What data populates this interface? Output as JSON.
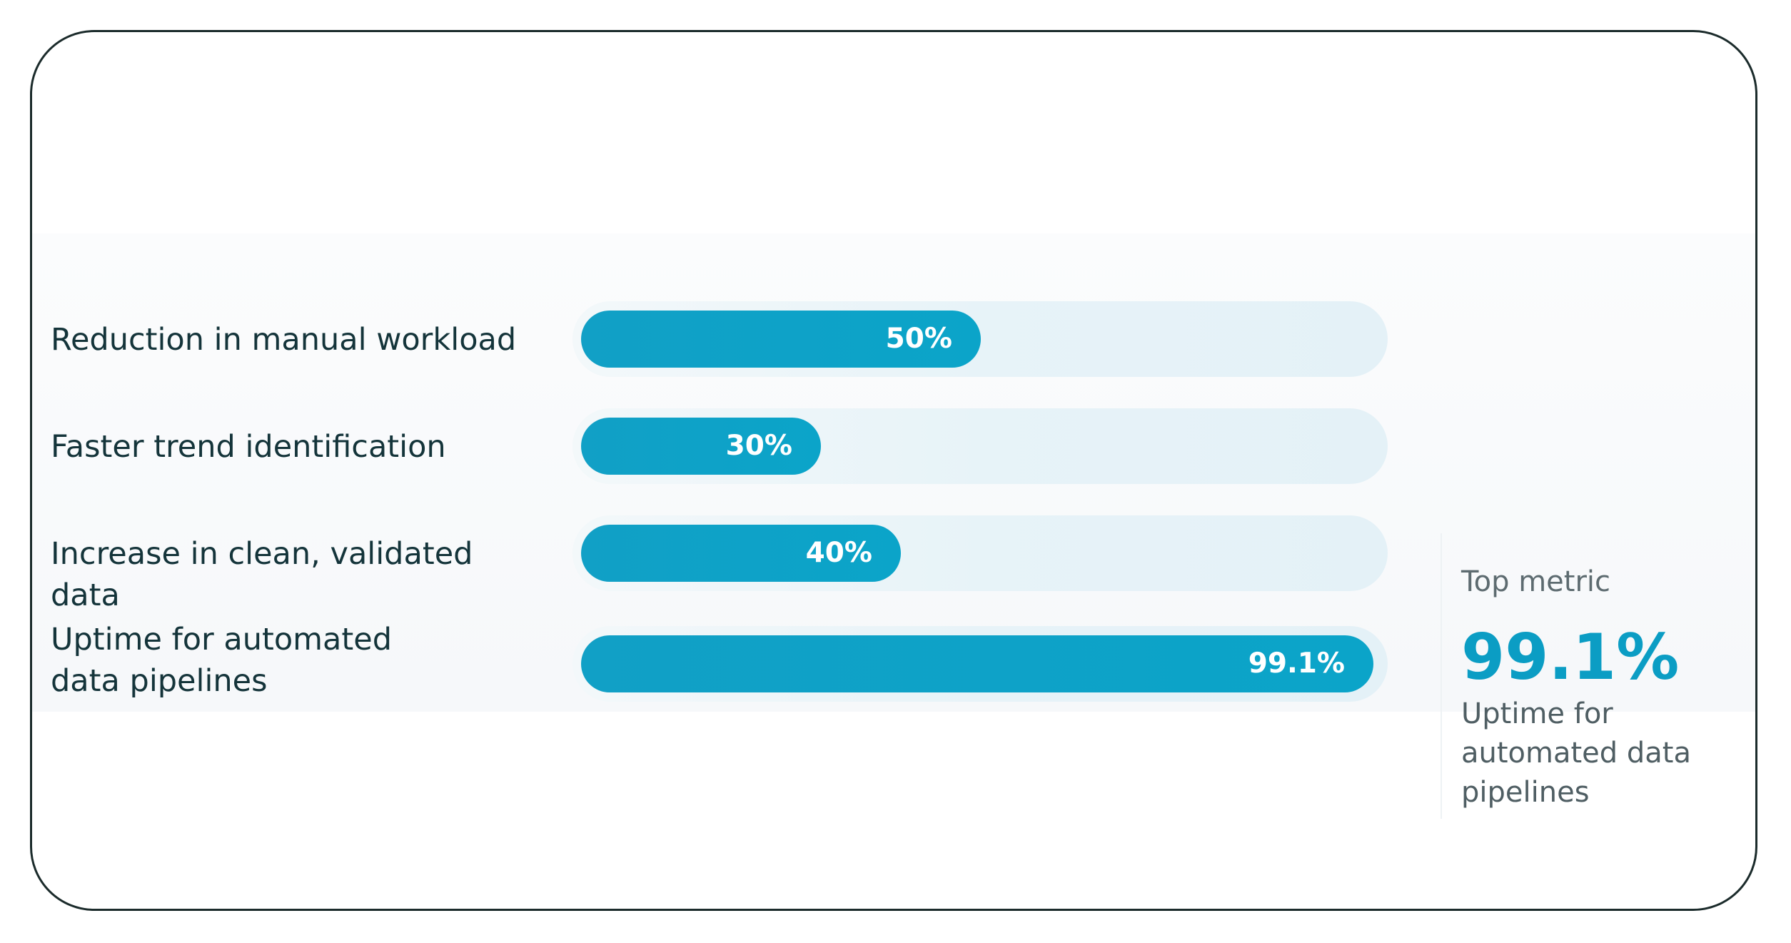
{
  "chart_data": {
    "type": "bar",
    "orientation": "horizontal",
    "categories": [
      "Reduction in manual workload",
      "Faster trend identification",
      "Increase in clean, validated data",
      "Uptime for automated data pipelines"
    ],
    "values": [
      50,
      30,
      40,
      99.1
    ],
    "value_labels": [
      "50%",
      "30%",
      "40%",
      "99.1%"
    ],
    "ylim": [
      0,
      100
    ],
    "grid": false,
    "legend": "none",
    "colors": {
      "bar": "#0ea3c8",
      "track": "#e6f2f8",
      "label": "#14343a",
      "accent": "#0b9dc4"
    }
  },
  "side_panel": {
    "caption": "Top metric",
    "value": "99.1%",
    "description": "Uptime for automated data pipelines"
  }
}
